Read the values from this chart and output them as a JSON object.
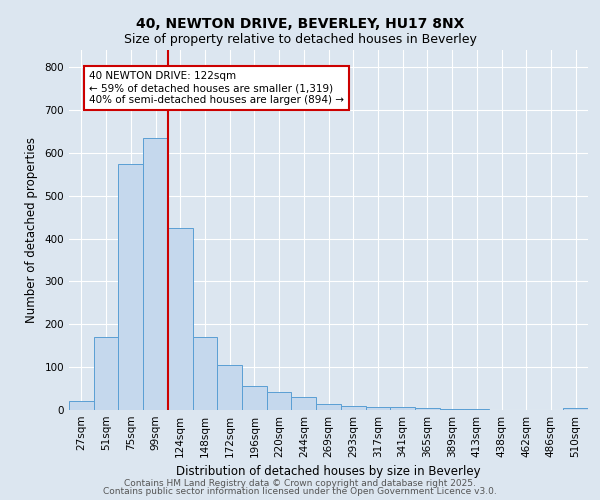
{
  "title1": "40, NEWTON DRIVE, BEVERLEY, HU17 8NX",
  "title2": "Size of property relative to detached houses in Beverley",
  "xlabel": "Distribution of detached houses by size in Beverley",
  "ylabel": "Number of detached properties",
  "bin_labels": [
    "27sqm",
    "51sqm",
    "75sqm",
    "99sqm",
    "124sqm",
    "148sqm",
    "172sqm",
    "196sqm",
    "220sqm",
    "244sqm",
    "269sqm",
    "293sqm",
    "317sqm",
    "341sqm",
    "365sqm",
    "389sqm",
    "413sqm",
    "438sqm",
    "462sqm",
    "486sqm",
    "510sqm"
  ],
  "bar_heights": [
    20,
    170,
    575,
    635,
    425,
    170,
    105,
    57,
    42,
    30,
    15,
    10,
    8,
    6,
    4,
    3,
    2,
    1,
    0,
    0,
    5
  ],
  "bar_color": "#c5d8ed",
  "bar_edge_color": "#5a9fd4",
  "vline_x_index": 4,
  "vline_color": "#cc0000",
  "annotation_text": "40 NEWTON DRIVE: 122sqm\n← 59% of detached houses are smaller (1,319)\n40% of semi-detached houses are larger (894) →",
  "annotation_box_color": "#ffffff",
  "annotation_box_edge": "#cc0000",
  "ylim": [
    0,
    840
  ],
  "yticks": [
    0,
    100,
    200,
    300,
    400,
    500,
    600,
    700,
    800
  ],
  "background_color": "#dce6f0",
  "grid_color": "#ffffff",
  "footer1": "Contains HM Land Registry data © Crown copyright and database right 2025.",
  "footer2": "Contains public sector information licensed under the Open Government Licence v3.0.",
  "title_fontsize": 10,
  "subtitle_fontsize": 9,
  "axis_label_fontsize": 8.5,
  "tick_fontsize": 7.5,
  "footer_fontsize": 6.5,
  "ann_fontsize": 7.5
}
